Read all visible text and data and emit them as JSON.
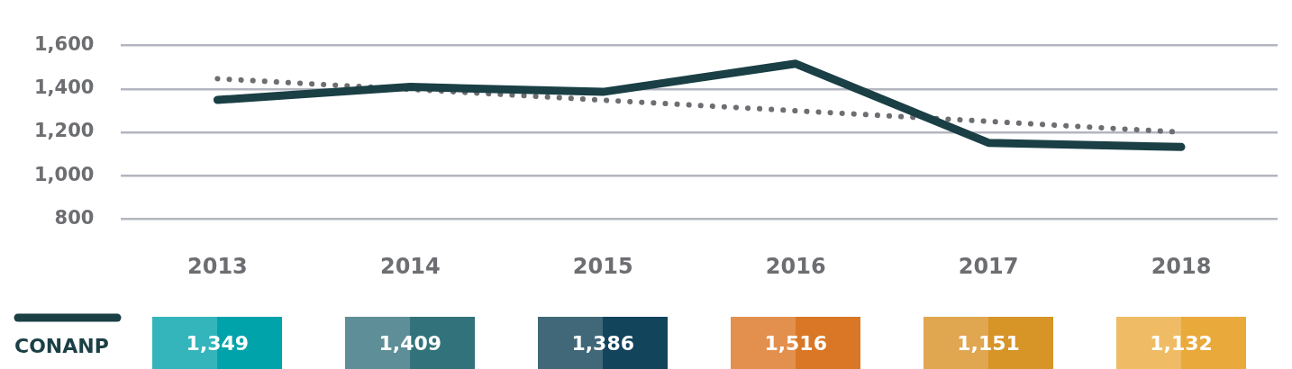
{
  "chart_data": {
    "type": "line",
    "categories": [
      "2013",
      "2014",
      "2015",
      "2016",
      "2017",
      "2018"
    ],
    "series": [
      {
        "name": "CONANP",
        "color": "#1a3f45",
        "values": [
          1349,
          1409,
          1386,
          1516,
          1151,
          1132
        ],
        "value_labels": [
          "1,349",
          "1,409",
          "1,386",
          "1,516",
          "1,151",
          "1,132"
        ]
      },
      {
        "color": "#6d6e71",
        "values": [
          1447,
          1398,
          1348,
          1299,
          1250,
          1200
        ],
        "line_style": "dotted"
      }
    ],
    "ylim": [
      800,
      1600
    ],
    "yticks": [
      {
        "value": 800,
        "label": "800"
      },
      {
        "value": 1000,
        "label": "1,000"
      },
      {
        "value": 1200,
        "label": "1,200"
      },
      {
        "value": 1400,
        "label": "1,400"
      },
      {
        "value": 1600,
        "label": "1,600"
      }
    ],
    "grid": "y",
    "legend": "bottom left",
    "marker": "none"
  }
}
